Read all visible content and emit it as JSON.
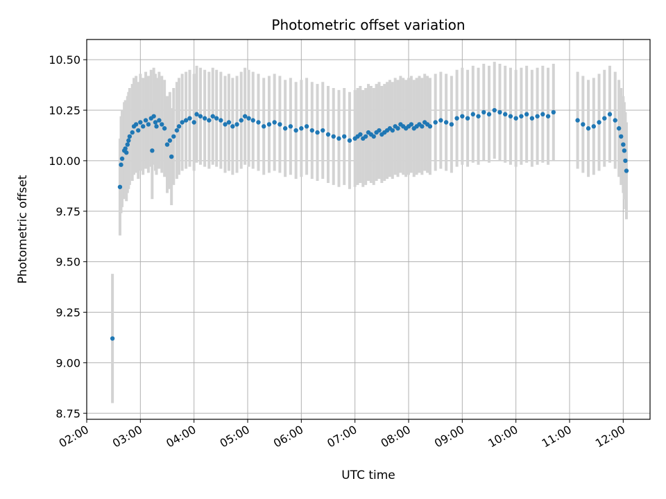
{
  "chart_data": {
    "type": "scatter",
    "title": "Photometric offset variation",
    "xlabel": "UTC time",
    "ylabel": "Photometric offset",
    "x_tick_labels": [
      "02:00",
      "03:00",
      "04:00",
      "05:00",
      "06:00",
      "07:00",
      "08:00",
      "09:00",
      "10:00",
      "11:00",
      "12:00"
    ],
    "y_tick_labels": [
      "8.75",
      "9.00",
      "9.25",
      "9.50",
      "9.75",
      "10.00",
      "10.25",
      "10.50"
    ],
    "xlim_hours": [
      2.0,
      12.5
    ],
    "ylim": [
      8.72,
      10.6
    ],
    "grid": true,
    "colors": {
      "points": "#1f77b4",
      "error_bars": "#d3d3d3",
      "grid": "#b0b0b0"
    },
    "series": [
      {
        "error": 0.24,
        "x_hours": [
          2.48,
          2.62,
          2.64,
          2.66,
          2.7,
          2.72,
          2.74,
          2.76,
          2.78,
          2.8,
          2.85,
          2.88,
          2.92,
          2.96,
          3.0,
          3.05,
          3.1,
          3.15,
          3.2,
          3.22,
          3.25,
          3.28,
          3.3,
          3.35,
          3.4,
          3.45,
          3.5,
          3.55,
          3.58,
          3.62,
          3.68,
          3.72,
          3.78,
          3.85,
          3.92,
          4.0,
          4.05,
          4.12,
          4.2,
          4.28,
          4.35,
          4.42,
          4.5,
          4.58,
          4.65,
          4.72,
          4.8,
          4.88,
          4.95,
          5.02,
          5.1,
          5.2,
          5.3,
          5.4,
          5.5,
          5.6,
          5.7,
          5.8,
          5.9,
          6.0,
          6.1,
          6.2,
          6.3,
          6.4,
          6.5,
          6.6,
          6.7,
          6.8,
          6.9,
          7.0,
          7.05,
          7.1,
          7.15,
          7.2,
          7.25,
          7.3,
          7.35,
          7.4,
          7.45,
          7.5,
          7.55,
          7.6,
          7.65,
          7.7,
          7.75,
          7.8,
          7.85,
          7.9,
          7.95,
          8.0,
          8.05,
          8.1,
          8.15,
          8.2,
          8.25,
          8.3,
          8.35,
          8.4,
          8.5,
          8.6,
          8.7,
          8.8,
          8.9,
          9.0,
          9.1,
          9.2,
          9.3,
          9.4,
          9.5,
          9.6,
          9.7,
          9.8,
          9.9,
          10.0,
          10.1,
          10.2,
          10.3,
          10.4,
          10.5,
          10.6,
          10.7,
          11.15,
          11.25,
          11.35,
          11.45,
          11.55,
          11.65,
          11.75,
          11.85,
          11.92,
          11.96,
          12.0,
          12.02,
          12.04,
          12.06
        ],
        "y": [
          9.12,
          9.87,
          9.98,
          10.01,
          10.05,
          10.06,
          10.04,
          10.08,
          10.1,
          10.12,
          10.14,
          10.17,
          10.18,
          10.15,
          10.19,
          10.17,
          10.2,
          10.18,
          10.21,
          10.05,
          10.22,
          10.19,
          10.17,
          10.2,
          10.18,
          10.16,
          10.08,
          10.1,
          10.02,
          10.12,
          10.15,
          10.17,
          10.19,
          10.2,
          10.21,
          10.19,
          10.23,
          10.22,
          10.21,
          10.2,
          10.22,
          10.21,
          10.2,
          10.18,
          10.19,
          10.17,
          10.18,
          10.2,
          10.22,
          10.21,
          10.2,
          10.19,
          10.17,
          10.18,
          10.19,
          10.18,
          10.16,
          10.17,
          10.15,
          10.16,
          10.17,
          10.15,
          10.14,
          10.15,
          10.13,
          10.12,
          10.11,
          10.12,
          10.1,
          10.11,
          10.12,
          10.13,
          10.11,
          10.12,
          10.14,
          10.13,
          10.12,
          10.14,
          10.15,
          10.13,
          10.14,
          10.15,
          10.16,
          10.15,
          10.17,
          10.16,
          10.18,
          10.17,
          10.16,
          10.17,
          10.18,
          10.16,
          10.17,
          10.18,
          10.17,
          10.19,
          10.18,
          10.17,
          10.19,
          10.2,
          10.19,
          10.18,
          10.21,
          10.22,
          10.21,
          10.23,
          10.22,
          10.24,
          10.23,
          10.25,
          10.24,
          10.23,
          10.22,
          10.21,
          10.22,
          10.23,
          10.21,
          10.22,
          10.23,
          10.22,
          10.24,
          10.2,
          10.18,
          10.16,
          10.17,
          10.19,
          10.21,
          10.23,
          10.2,
          10.16,
          10.12,
          10.08,
          10.05,
          10.0,
          9.95
        ]
      }
    ]
  }
}
